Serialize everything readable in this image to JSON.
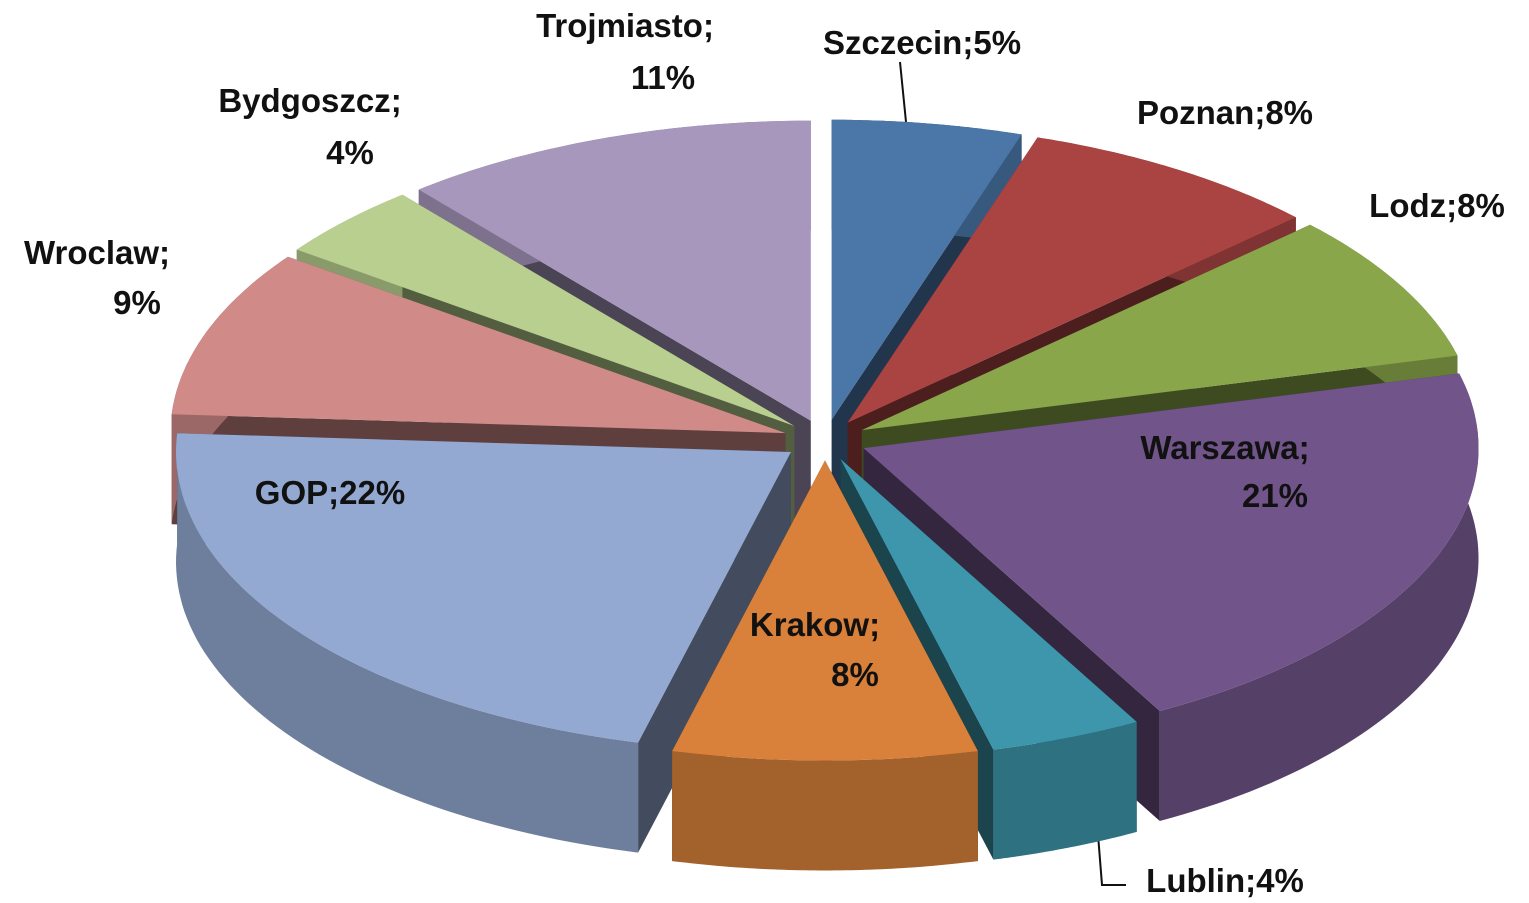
{
  "chart_data": {
    "type": "pie",
    "categories": [
      "Szczecin",
      "Poznan",
      "Lodz",
      "Warszawa",
      "Lublin",
      "Krakow",
      "GOP",
      "Wroclaw",
      "Bydgoszcz",
      "Trojmiasto"
    ],
    "values": [
      5,
      8,
      8,
      21,
      4,
      8,
      22,
      9,
      4,
      11
    ],
    "value_labels": [
      "5%",
      "8%",
      "8%",
      "21%",
      "4%",
      "8%",
      "22%",
      "9%",
      "4%",
      "11%"
    ],
    "label_separator": ";",
    "colors": [
      "#4a76a8",
      "#a94442",
      "#8aa64a",
      "#71558a",
      "#3d96ac",
      "#d9813a",
      "#93a9d1",
      "#d08b89",
      "#b8cf8f",
      "#a797bd"
    ]
  }
}
